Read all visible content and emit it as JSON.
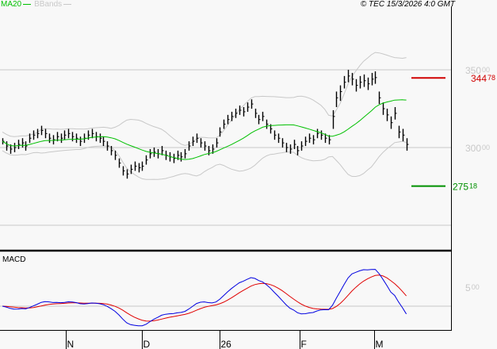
{
  "legend": {
    "ma_label": "MA20",
    "bb_label": "BBands",
    "ma_color": "#00c000",
    "bb_color": "#c8c8c8"
  },
  "copyright": "© TEC 15/3/2026 4:0 GMT",
  "macd_label": "MACD",
  "chart_data": [
    {
      "type": "ohlc",
      "price_axis": {
        "ticks": [
          {
            "value": 350,
            "int": "350",
            "dec": "00"
          },
          {
            "value": 300,
            "int": "300",
            "dec": "00"
          }
        ],
        "grid_values": [
          350,
          300,
          250
        ],
        "ylim": [
          233.7,
          391
        ]
      },
      "levels": [
        {
          "value": 344.78,
          "int": "344",
          "dec": "78",
          "color": "#d00000"
        },
        {
          "value": 275.18,
          "int": "275",
          "dec": "18",
          "color": "#009000"
        }
      ],
      "bars_hlc": [
        [
          306,
          302,
          304
        ],
        [
          304,
          298,
          301
        ],
        [
          302,
          296,
          299
        ],
        [
          303,
          297,
          300
        ],
        [
          305,
          299,
          302
        ],
        [
          306,
          300,
          303
        ],
        [
          304,
          298,
          301
        ],
        [
          309,
          303,
          306
        ],
        [
          311,
          305,
          308
        ],
        [
          312,
          306,
          309
        ],
        [
          314,
          308,
          311
        ],
        [
          312,
          306,
          309
        ],
        [
          309,
          303,
          306
        ],
        [
          308,
          302,
          305
        ],
        [
          310,
          304,
          307
        ],
        [
          309,
          303,
          306
        ],
        [
          311,
          305,
          308
        ],
        [
          312,
          306,
          309
        ],
        [
          310,
          304,
          307
        ],
        [
          309,
          303,
          306
        ],
        [
          307,
          301,
          304
        ],
        [
          309,
          303,
          306
        ],
        [
          311,
          305,
          308
        ],
        [
          312,
          306,
          309
        ],
        [
          310,
          304,
          307
        ],
        [
          309,
          303,
          306
        ],
        [
          307,
          301,
          304
        ],
        [
          304,
          298,
          301
        ],
        [
          301,
          295,
          298
        ],
        [
          298,
          292,
          295
        ],
        [
          293,
          287,
          290
        ],
        [
          288,
          282,
          285
        ],
        [
          286,
          280,
          283
        ],
        [
          289,
          283,
          286
        ],
        [
          291,
          285,
          288
        ],
        [
          290,
          284,
          287
        ],
        [
          291,
          285,
          288
        ],
        [
          295,
          289,
          292
        ],
        [
          299,
          293,
          296
        ],
        [
          300,
          294,
          297
        ],
        [
          299,
          293,
          296
        ],
        [
          301,
          295,
          298
        ],
        [
          298,
          292,
          295
        ],
        [
          297,
          291,
          294
        ],
        [
          296,
          290,
          293
        ],
        [
          298,
          292,
          295
        ],
        [
          297,
          291,
          294
        ],
        [
          299,
          293,
          296
        ],
        [
          304,
          298,
          301
        ],
        [
          307,
          301,
          304
        ],
        [
          309,
          303,
          306
        ],
        [
          306,
          300,
          303
        ],
        [
          304,
          298,
          301
        ],
        [
          301,
          295,
          298
        ],
        [
          302,
          296,
          299
        ],
        [
          306,
          300,
          303
        ],
        [
          313,
          307,
          310
        ],
        [
          318,
          312,
          315
        ],
        [
          321,
          315,
          318
        ],
        [
          323,
          317,
          320
        ],
        [
          325,
          319,
          322
        ],
        [
          327,
          321,
          324
        ],
        [
          326,
          320,
          323
        ],
        [
          329,
          323,
          326
        ],
        [
          331,
          325,
          328
        ],
        [
          325,
          319,
          322
        ],
        [
          321,
          315,
          318
        ],
        [
          323,
          317,
          320
        ],
        [
          318,
          312,
          315
        ],
        [
          315,
          309,
          312
        ],
        [
          311,
          305,
          308
        ],
        [
          309,
          303,
          306
        ],
        [
          306,
          300,
          303
        ],
        [
          303,
          297,
          300
        ],
        [
          302,
          296,
          299
        ],
        [
          305,
          299,
          302
        ],
        [
          301,
          295,
          298
        ],
        [
          304,
          298,
          301
        ],
        [
          307,
          301,
          304
        ],
        [
          309,
          303,
          306
        ],
        [
          308,
          302,
          305
        ],
        [
          312,
          306,
          309
        ],
        [
          311,
          305,
          308
        ],
        [
          309,
          303,
          306
        ],
        [
          308,
          302,
          305
        ],
        [
          324,
          312,
          320
        ],
        [
          336,
          326,
          332
        ],
        [
          340,
          330,
          336
        ],
        [
          346,
          338,
          342
        ],
        [
          350,
          342,
          346
        ],
        [
          348,
          340,
          344
        ],
        [
          344,
          336,
          340
        ],
        [
          346,
          338,
          342
        ],
        [
          347,
          339,
          343
        ],
        [
          345,
          337,
          341
        ],
        [
          348,
          340,
          344
        ],
        [
          349,
          341,
          345
        ],
        [
          336,
          328,
          332
        ],
        [
          329,
          321,
          325
        ],
        [
          325,
          317,
          321
        ],
        [
          320,
          312,
          316
        ],
        [
          326,
          318,
          322
        ],
        [
          314,
          306,
          310
        ],
        [
          312,
          304,
          308
        ],
        [
          306,
          298,
          302
        ]
      ],
      "ma_period": 20,
      "bb_stdev": 2,
      "x_ticks": [
        "N",
        "D",
        "26",
        "F",
        "M"
      ],
      "macd": {
        "label": "MACD",
        "fast": 12,
        "slow": 26,
        "signal": 9,
        "ticks": [
          {
            "value": 5,
            "int": "5",
            "dec": "00"
          }
        ],
        "macd_color": "#0000e0",
        "signal_color": "#e00000"
      }
    }
  ]
}
